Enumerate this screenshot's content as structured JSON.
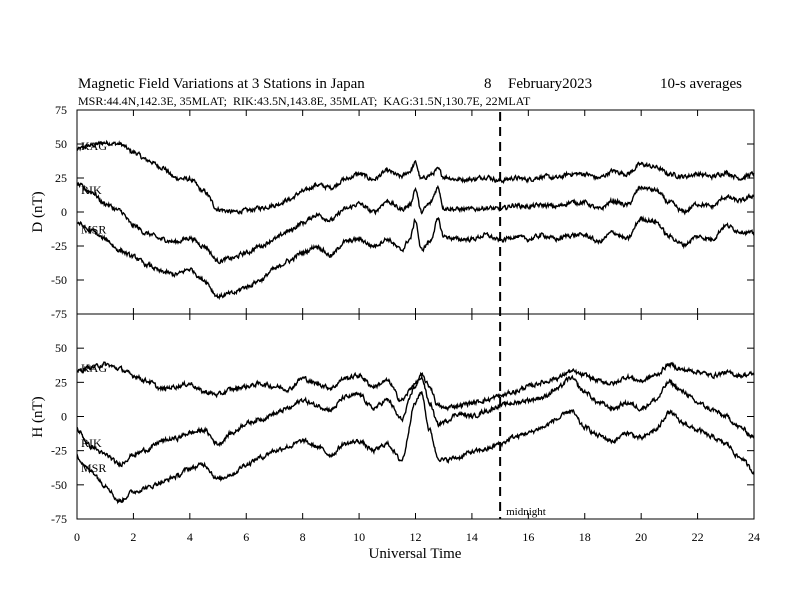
{
  "chart_data": {
    "type": "line",
    "title": "Magnetic Field Variations at 3 Stations in Japan",
    "date_day": "8",
    "date_month_year": "February2023",
    "averaging": "10-s averages",
    "stations_info": "MSR:44.4N,142.3E, 35MLAT;  RIK:43.5N,143.8E, 35MLAT;  KAG:31.5N,130.7E, 22MLAT",
    "xlabel": "Universal Time",
    "xlim": [
      0,
      24
    ],
    "xticks": [
      0,
      2,
      4,
      6,
      8,
      10,
      12,
      14,
      16,
      18,
      20,
      22,
      24
    ],
    "midnight_ut": 15,
    "midnight_label": "midnight",
    "panels": [
      {
        "ylabel": "D (nT)",
        "ylim": [
          -75,
          75
        ],
        "yticks": [
          75,
          50,
          25,
          0,
          -25,
          -50,
          -75
        ],
        "series": [
          {
            "name": "KAG",
            "x": [
              0,
              0.5,
              1,
              1.5,
              2,
              2.5,
              3,
              3.5,
              4,
              4.5,
              5,
              5.5,
              6,
              6.5,
              7,
              7.5,
              8,
              8.5,
              9,
              9.5,
              10,
              10.5,
              11,
              11.5,
              11.8,
              12,
              12.2,
              12.5,
              12.8,
              13,
              13.5,
              14,
              14.5,
              15,
              15.5,
              16,
              16.5,
              17,
              17.5,
              18,
              18.5,
              19,
              19.5,
              20,
              20.5,
              21,
              21.5,
              22,
              22.5,
              23,
              23.5,
              24
            ],
            "values": [
              46,
              49,
              51,
              50,
              44,
              38,
              33,
              25,
              24,
              15,
              2,
              0,
              1,
              3,
              5,
              9,
              15,
              20,
              18,
              24,
              28,
              24,
              30,
              26,
              30,
              36,
              24,
              27,
              31,
              26,
              24,
              24,
              26,
              23,
              25,
              24,
              26,
              25,
              28,
              28,
              25,
              30,
              28,
              35,
              33,
              28,
              26,
              28,
              26,
              29,
              25,
              28
            ]
          },
          {
            "name": "RIK",
            "x": [
              0,
              0.5,
              1,
              1.5,
              2,
              2.5,
              3,
              3.5,
              4,
              4.5,
              5,
              5.5,
              6,
              6.5,
              7,
              7.5,
              8,
              8.5,
              9,
              9.5,
              10,
              10.5,
              11,
              11.5,
              11.8,
              12,
              12.2,
              12.5,
              12.8,
              13,
              13.5,
              14,
              14.5,
              15,
              15.5,
              16,
              16.5,
              17,
              17.5,
              18,
              18.5,
              19,
              19.5,
              20,
              20.5,
              21,
              21.5,
              22,
              22.5,
              23,
              23.5,
              24
            ],
            "values": [
              20,
              15,
              6,
              1,
              -10,
              -16,
              -20,
              -22,
              -19,
              -25,
              -36,
              -34,
              -30,
              -25,
              -20,
              -14,
              -8,
              -2,
              -6,
              2,
              6,
              0,
              8,
              2,
              5,
              17,
              0,
              6,
              18,
              3,
              2,
              2,
              3,
              2,
              5,
              4,
              5,
              4,
              7,
              7,
              2,
              8,
              5,
              18,
              16,
              7,
              0,
              6,
              4,
              11,
              8,
              12
            ]
          },
          {
            "name": "MSR",
            "x": [
              0,
              0.5,
              1,
              1.5,
              2,
              2.5,
              3,
              3.5,
              4,
              4.5,
              5,
              5.5,
              6,
              6.5,
              7,
              7.5,
              8,
              8.5,
              9,
              9.5,
              10,
              10.5,
              11,
              11.5,
              11.8,
              12,
              12.2,
              12.5,
              12.8,
              13,
              13.5,
              14,
              14.5,
              15,
              15.5,
              16,
              16.5,
              17,
              17.5,
              18,
              18.5,
              19,
              19.5,
              20,
              20.5,
              21,
              21.5,
              22,
              22.5,
              23,
              23.5,
              24
            ],
            "values": [
              -8,
              -14,
              -20,
              -28,
              -33,
              -39,
              -44,
              -46,
              -42,
              -50,
              -62,
              -60,
              -55,
              -50,
              -42,
              -36,
              -30,
              -25,
              -32,
              -22,
              -20,
              -25,
              -20,
              -28,
              -20,
              -6,
              -28,
              -22,
              -6,
              -18,
              -20,
              -20,
              -17,
              -21,
              -18,
              -20,
              -17,
              -20,
              -17,
              -17,
              -22,
              -15,
              -20,
              -5,
              -7,
              -18,
              -24,
              -18,
              -20,
              -10,
              -14,
              -16
            ]
          }
        ]
      },
      {
        "ylabel": "H (nT)",
        "ylim": [
          -75,
          75
        ],
        "yticks": [
          50,
          25,
          0,
          -25,
          -50,
          -75
        ],
        "series": [
          {
            "name": "KAG",
            "x": [
              0,
              0.5,
              1,
              1.5,
              2,
              2.5,
              3,
              3.5,
              4,
              4.5,
              5,
              5.5,
              6,
              6.5,
              7,
              7.5,
              8,
              8.5,
              9,
              9.5,
              10,
              10.5,
              11,
              11.5,
              12,
              12.2,
              12.5,
              12.8,
              13,
              13.5,
              14,
              14.5,
              15,
              15.5,
              16,
              16.5,
              17,
              17.5,
              18,
              18.5,
              19,
              19.5,
              20,
              20.5,
              21,
              21.5,
              22,
              22.5,
              23,
              23.5,
              24
            ],
            "values": [
              33,
              36,
              38,
              35,
              30,
              26,
              20,
              22,
              24,
              18,
              16,
              20,
              22,
              24,
              22,
              20,
              28,
              24,
              21,
              28,
              30,
              22,
              26,
              12,
              24,
              30,
              22,
              8,
              6,
              8,
              10,
              12,
              15,
              18,
              22,
              25,
              28,
              33,
              30,
              26,
              24,
              29,
              26,
              30,
              38,
              34,
              33,
              30,
              32,
              30,
              31
            ]
          },
          {
            "name": "RIK",
            "x": [
              0,
              0.5,
              1,
              1.5,
              2,
              2.5,
              3,
              3.5,
              4,
              4.5,
              5,
              5.5,
              6,
              6.5,
              7,
              7.5,
              8,
              8.5,
              9,
              9.5,
              10,
              10.5,
              11,
              11.5,
              12,
              12.2,
              12.5,
              12.8,
              13,
              13.5,
              14,
              14.5,
              15,
              15.5,
              16,
              16.5,
              17,
              17.5,
              18,
              18.5,
              19,
              19.5,
              20,
              20.5,
              21,
              21.5,
              22,
              22.5,
              23,
              23.5,
              24
            ],
            "values": [
              -10,
              -22,
              -28,
              -35,
              -28,
              -24,
              -18,
              -16,
              -12,
              -10,
              -20,
              -12,
              -5,
              -2,
              2,
              6,
              12,
              8,
              5,
              14,
              16,
              6,
              12,
              -2,
              22,
              29,
              10,
              -6,
              -4,
              2,
              0,
              4,
              8,
              10,
              12,
              14,
              20,
              28,
              18,
              10,
              6,
              10,
              6,
              12,
              25,
              18,
              10,
              5,
              0,
              -8,
              -15
            ]
          },
          {
            "name": "MSR",
            "x": [
              0,
              0.5,
              1,
              1.5,
              2,
              2.5,
              3,
              3.5,
              4,
              4.5,
              5,
              5.5,
              6,
              6.5,
              7,
              7.5,
              8,
              8.5,
              9,
              9.5,
              10,
              10.5,
              11,
              11.5,
              12,
              12.2,
              12.5,
              12.8,
              13,
              13.5,
              14,
              14.5,
              15,
              15.5,
              16,
              16.5,
              17,
              17.5,
              18,
              18.5,
              19,
              19.5,
              20,
              20.5,
              21,
              21.5,
              22,
              22.5,
              23,
              23.5,
              24
            ],
            "values": [
              -30,
              -40,
              -50,
              -62,
              -55,
              -52,
              -48,
              -44,
              -38,
              -35,
              -46,
              -42,
              -35,
              -30,
              -25,
              -22,
              -18,
              -22,
              -28,
              -20,
              -18,
              -25,
              -20,
              -32,
              10,
              18,
              -10,
              -30,
              -32,
              -30,
              -26,
              -24,
              -20,
              -15,
              -12,
              -8,
              -2,
              4,
              -8,
              -14,
              -18,
              -12,
              -16,
              -10,
              3,
              -5,
              -10,
              -15,
              -20,
              -30,
              -40
            ]
          }
        ]
      }
    ]
  }
}
